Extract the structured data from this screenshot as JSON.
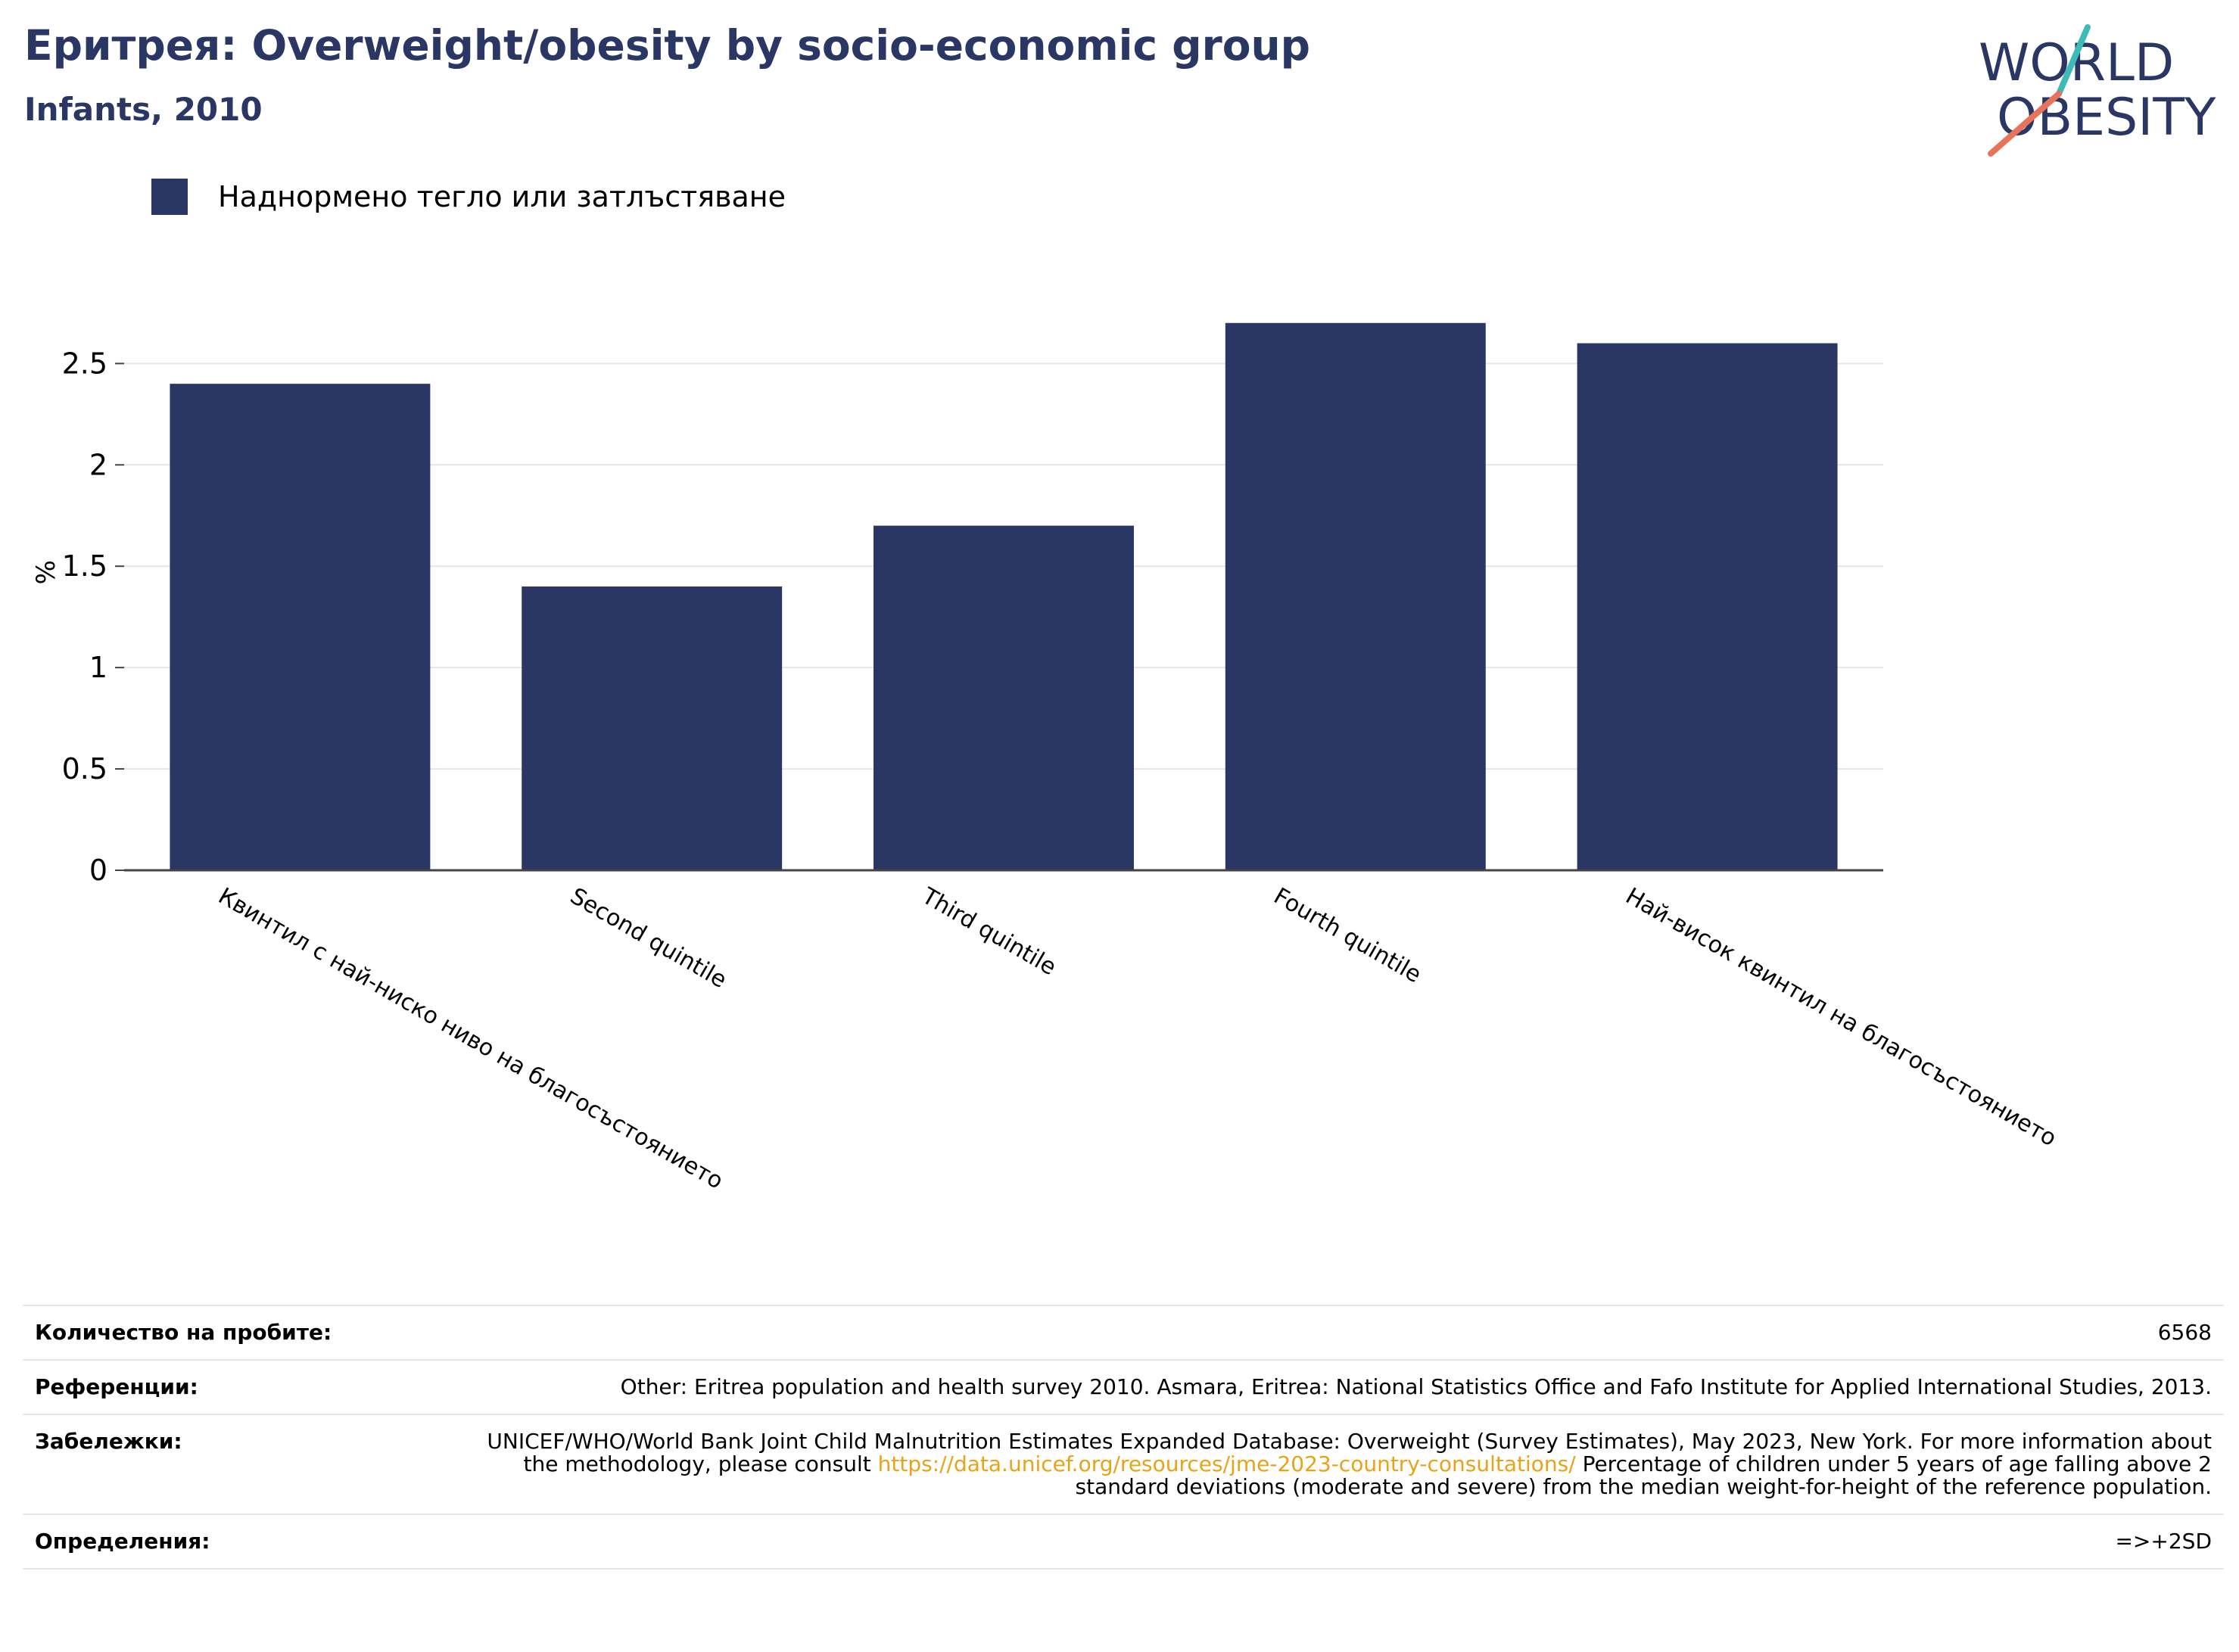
{
  "header": {
    "title": "Еритрея: Overweight/obesity by socio-economic group",
    "subtitle": "Infants, 2010"
  },
  "logo": {
    "line1": "WORLD",
    "line2": "OBESITY"
  },
  "chart_data": {
    "type": "bar",
    "categories": [
      "Квинтил с най-ниско ниво на благосъстоянието",
      "Second quintile",
      "Third quintile",
      "Fourth quintile",
      "Най-висок квинтил на благосъстоянието"
    ],
    "series": [
      {
        "name": "Наднормено тегло или затлъстяване",
        "values": [
          2.4,
          1.4,
          1.7,
          2.7,
          2.6
        ],
        "color": "#2a3663"
      }
    ],
    "ylabel": "%",
    "ylim": [
      0,
      2.8
    ],
    "yticks": [
      0,
      0.5,
      1,
      1.5,
      2,
      2.5
    ],
    "ytick_labels": [
      "0",
      "0.5",
      "1",
      "1.5",
      "2",
      "2.5"
    ],
    "grid": true,
    "legend": "top-left"
  },
  "meta": {
    "samples_label": "Количество на пробите:",
    "samples_value": "6568",
    "references_label": "Референции:",
    "references_value": "Other: Eritrea population and health survey 2010. Asmara, Eritrea: National Statistics Office and Fafo Institute for Applied International Studies, 2013.",
    "notes_label": "Забележки:",
    "notes_before": "UNICEF/WHO/World Bank Joint Child Malnutrition Estimates Expanded Database: Overweight (Survey Estimates), May 2023, New York. For more information about the methodology, please consult ",
    "notes_link": "https://data.unicef.org/resources/jme-2023-country-consultations/",
    "notes_after": " Percentage of children under 5 years of age falling above 2 standard deviations (moderate and severe) from the median weight-for-height of the reference population.",
    "definitions_label": "Определения:",
    "definitions_value": "=>+2SD"
  },
  "colors": {
    "brand": "#2a3663",
    "accent_teal": "#3dbbb6",
    "accent_coral": "#e8735a",
    "link": "#e8a317"
  }
}
